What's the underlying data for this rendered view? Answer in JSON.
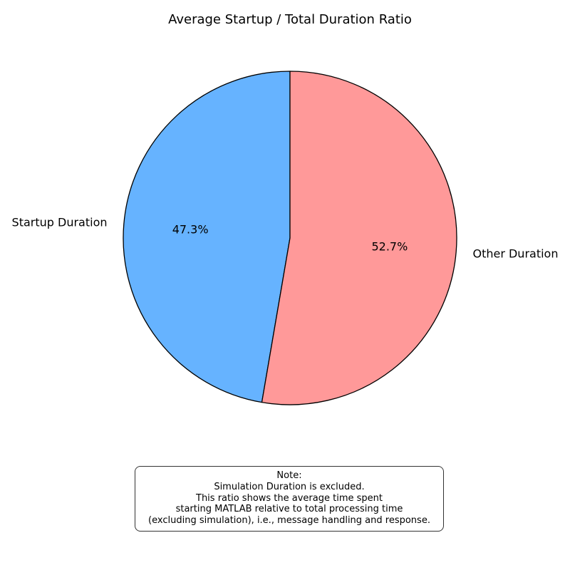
{
  "chart_data": {
    "type": "pie",
    "title": "Average Startup / Total Duration Ratio",
    "categories": [
      "Startup Duration",
      "Other Duration"
    ],
    "values": [
      47.3,
      52.7
    ],
    "percent_labels": [
      "47.3%",
      "52.7%"
    ],
    "colors": [
      "#66b3ff",
      "#ff9999"
    ],
    "edge_color": "#000000",
    "start_angle": "top (12 o'clock), counter-clockwise"
  },
  "note": {
    "lines": [
      "Note:",
      "Simulation Duration is excluded.",
      "This ratio shows the average time spent",
      "starting MATLAB relative to total processing time",
      "(excluding simulation), i.e., message handling and response."
    ]
  }
}
